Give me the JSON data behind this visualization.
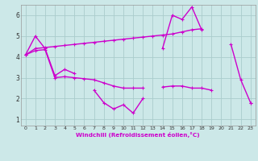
{
  "xlabel": "Windchill (Refroidissement éolien,°C)",
  "x": [
    0,
    1,
    2,
    3,
    4,
    5,
    6,
    7,
    8,
    9,
    10,
    11,
    12,
    13,
    14,
    15,
    16,
    17,
    18,
    19,
    20,
    21,
    22,
    23
  ],
  "line1": [
    4.1,
    5.0,
    4.4,
    3.1,
    3.4,
    3.2,
    null,
    2.4,
    1.8,
    1.5,
    1.7,
    1.3,
    2.0,
    null,
    4.4,
    6.0,
    5.8,
    6.4,
    5.3,
    null,
    null,
    4.6,
    2.9,
    1.8
  ],
  "line2": [
    4.1,
    4.4,
    4.45,
    4.5,
    4.55,
    4.6,
    4.65,
    4.7,
    4.75,
    4.8,
    4.85,
    4.9,
    4.95,
    5.0,
    5.05,
    5.1,
    5.2,
    5.3,
    5.35,
    null,
    null,
    null,
    null,
    null
  ],
  "line3": [
    4.1,
    4.3,
    4.35,
    3.0,
    3.05,
    3.0,
    2.95,
    2.9,
    2.75,
    2.6,
    2.5,
    2.5,
    2.5,
    null,
    2.55,
    2.6,
    2.6,
    2.5,
    2.5,
    2.4,
    null,
    null,
    null,
    1.8
  ],
  "line_color": "#cc00cc",
  "bg_color": "#cce8e8",
  "grid_color": "#aacccc",
  "xlim": [
    -0.5,
    23.5
  ],
  "ylim": [
    0.7,
    6.5
  ],
  "yticks": [
    1,
    2,
    3,
    4,
    5,
    6
  ],
  "xticks": [
    0,
    1,
    2,
    3,
    4,
    5,
    6,
    7,
    8,
    9,
    10,
    11,
    12,
    13,
    14,
    15,
    16,
    17,
    18,
    19,
    20,
    21,
    22,
    23
  ]
}
